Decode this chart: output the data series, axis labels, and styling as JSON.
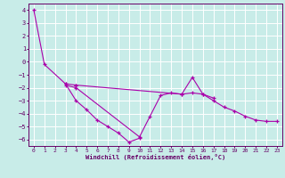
{
  "xlabel": "Windchill (Refroidissement éolien,°C)",
  "xlim": [
    -0.5,
    23.5
  ],
  "ylim": [
    -6.5,
    4.5
  ],
  "yticks": [
    -6,
    -5,
    -4,
    -3,
    -2,
    -1,
    0,
    1,
    2,
    3,
    4
  ],
  "xticks": [
    0,
    1,
    2,
    3,
    4,
    5,
    6,
    7,
    8,
    9,
    10,
    11,
    12,
    13,
    14,
    15,
    16,
    17,
    18,
    19,
    20,
    21,
    22,
    23
  ],
  "bg_color": "#c8ece8",
  "grid_color": "#ffffff",
  "line_color": "#aa00aa",
  "lines": [
    {
      "x": [
        0,
        1,
        3,
        4
      ],
      "y": [
        4.0,
        -0.2,
        -1.7,
        -1.8
      ]
    },
    {
      "x": [
        3,
        4,
        5,
        6,
        7,
        8,
        9,
        10
      ],
      "y": [
        -1.7,
        -3.0,
        -3.7,
        -4.5,
        -5.0,
        -5.5,
        -6.2,
        -5.9
      ]
    },
    {
      "x": [
        3,
        4,
        10,
        11,
        12,
        13,
        14,
        15,
        16,
        17
      ],
      "y": [
        -1.8,
        -2.0,
        -5.8,
        -4.2,
        -2.6,
        -2.4,
        -2.5,
        -1.2,
        -2.5,
        -2.8
      ]
    },
    {
      "x": [
        4,
        14,
        15,
        16,
        17,
        18,
        19,
        20,
        21,
        22,
        23
      ],
      "y": [
        -1.8,
        -2.5,
        -2.4,
        -2.5,
        -3.0,
        -3.5,
        -3.8,
        -4.2,
        -4.5,
        -4.6,
        -4.6
      ]
    }
  ]
}
